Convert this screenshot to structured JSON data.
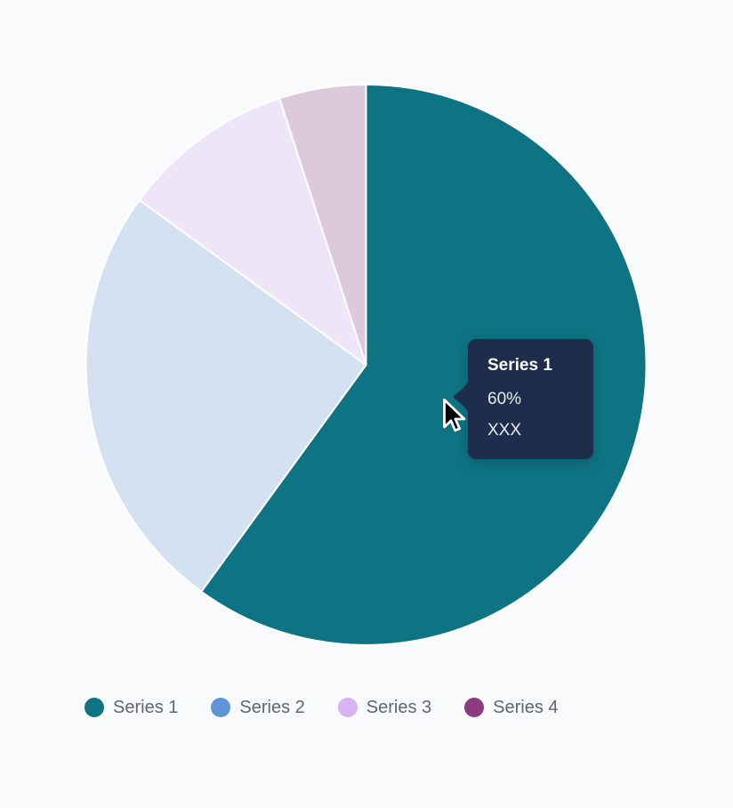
{
  "page": {
    "background_color": "#f8fafc"
  },
  "chart_data": {
    "type": "pie",
    "title": "",
    "categories": [
      "Series 1",
      "Series 2",
      "Series 3",
      "Series 4"
    ],
    "values": [
      60,
      25,
      10,
      5
    ],
    "unit": "%",
    "direction": "clockwise",
    "start_angle_deg": 0,
    "legend_position": "bottom",
    "series": [
      {
        "name": "Series 1",
        "value": 60,
        "color": "#0e7483",
        "slice_color": "#0e7483",
        "state": "hovered"
      },
      {
        "name": "Series 2",
        "value": 25,
        "color": "#5f94d9",
        "slice_color": "#d3e1f1",
        "state": "faded"
      },
      {
        "name": "Series 3",
        "value": 10,
        "color": "#d7b3f2",
        "slice_color": "#eee5f9",
        "state": "faded"
      },
      {
        "name": "Series 4",
        "value": 5,
        "color": "#8d3b7f",
        "slice_color": "#dcc9dc",
        "state": "faded"
      }
    ]
  },
  "tooltip": {
    "title": "Series 1",
    "value": "60%",
    "label": "XXX",
    "background_color": "#1e2d4b",
    "title_color": "#ffffff",
    "body_color": "#e6ebf2"
  },
  "legend": {
    "text_color": "#5d6674",
    "items": [
      {
        "label": "Series 1",
        "color": "#0e7483"
      },
      {
        "label": "Series 2",
        "color": "#5f94d9"
      },
      {
        "label": "Series 3",
        "color": "#d7b3f2"
      },
      {
        "label": "Series 4",
        "color": "#8d3b7f"
      }
    ]
  }
}
